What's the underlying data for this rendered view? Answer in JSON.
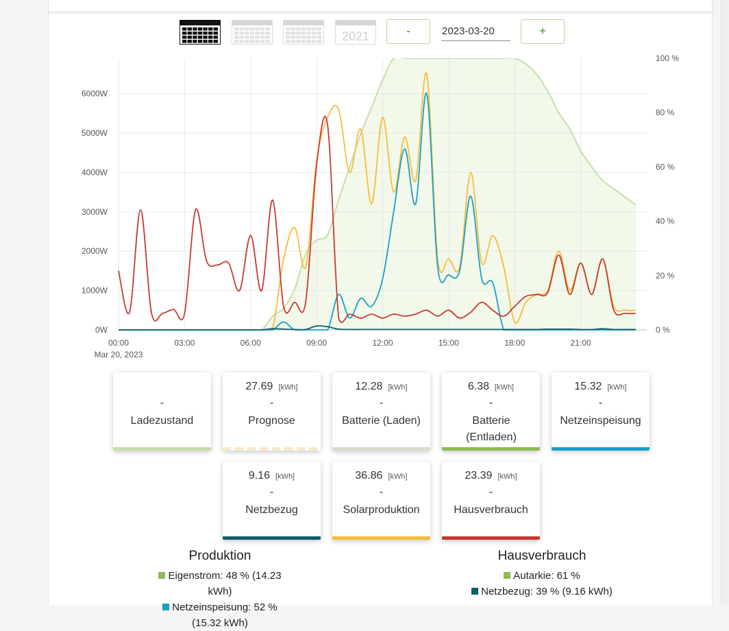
{
  "toolbar": {
    "period_year_label": "2021",
    "minus_label": "-",
    "plus_label": "+",
    "date_value": "2023-03-20"
  },
  "colors": {
    "soc": "#c5dfa8",
    "soc_fill": "#f2f8ea",
    "forecast": "#fbe6c9",
    "battery_charge": "#d7ddc9",
    "battery_discharge": "#8ebc55",
    "grid_feed": "#1a9fc7",
    "grid_draw": "#0f5e6b",
    "solar": "#f5bd3a",
    "house": "#c73a31"
  },
  "chart_data": {
    "type": "line",
    "x": [
      "00:00",
      "00:30",
      "01:00",
      "01:30",
      "02:00",
      "02:30",
      "03:00",
      "03:30",
      "04:00",
      "04:30",
      "05:00",
      "05:30",
      "06:00",
      "06:30",
      "07:00",
      "07:30",
      "08:00",
      "08:30",
      "09:00",
      "09:30",
      "10:00",
      "10:30",
      "11:00",
      "11:30",
      "12:00",
      "12:30",
      "13:00",
      "13:30",
      "14:00",
      "14:30",
      "15:00",
      "15:30",
      "16:00",
      "16:30",
      "17:00",
      "17:30",
      "18:00",
      "18:30",
      "19:00",
      "19:30",
      "20:00",
      "20:30",
      "21:00",
      "21:30",
      "22:00",
      "22:30",
      "23:00",
      "23:30"
    ],
    "x_tick_labels": [
      "00:00",
      "03:00",
      "06:00",
      "09:00",
      "12:00",
      "15:00",
      "18:00",
      "21:00"
    ],
    "x_sublabel": "Mar 20, 2023",
    "y_ticks_left": [
      "0W",
      "1000W",
      "2000W",
      "3000W",
      "4000W",
      "5000W",
      "6000W"
    ],
    "y_ticks_right": [
      "0 %",
      "20 %",
      "40 %",
      "60 %",
      "80 %",
      "100 %"
    ],
    "ylim": [
      0,
      6900
    ],
    "y2lim": [
      0,
      100
    ],
    "series": [
      {
        "key": "soc",
        "axis": "right",
        "values": [
          0,
          0,
          0,
          0,
          0,
          0,
          0,
          0,
          0,
          0,
          0,
          0,
          0,
          0,
          5,
          8,
          15,
          28,
          33,
          35,
          48,
          60,
          72,
          82,
          92,
          100,
          100,
          100,
          100,
          100,
          100,
          100,
          100,
          100,
          100,
          100,
          100,
          98,
          94,
          88,
          80,
          74,
          66,
          60,
          55,
          52,
          49,
          46
        ]
      },
      {
        "key": "solar",
        "axis": "left",
        "values": [
          0,
          0,
          0,
          0,
          0,
          0,
          0,
          0,
          0,
          0,
          0,
          0,
          0,
          0,
          50,
          1800,
          2600,
          1600,
          4300,
          5400,
          5600,
          4000,
          5100,
          3200,
          5400,
          3500,
          4900,
          3800,
          6500,
          1800,
          1800,
          1600,
          4000,
          1700,
          2400,
          1600,
          200,
          700,
          900,
          1000,
          2000,
          1000,
          1700,
          900,
          1800,
          600,
          500,
          500
        ]
      },
      {
        "key": "grid_feed",
        "axis": "left",
        "values": [
          0,
          0,
          0,
          0,
          0,
          0,
          0,
          0,
          0,
          0,
          0,
          0,
          0,
          0,
          0,
          200,
          0,
          0,
          0,
          0,
          900,
          300,
          800,
          600,
          1300,
          3000,
          4600,
          3200,
          6000,
          1600,
          1400,
          1500,
          3400,
          1300,
          1200,
          0,
          0,
          0,
          0,
          0,
          0,
          0,
          0,
          0,
          0,
          0,
          0,
          0
        ]
      },
      {
        "key": "grid_draw",
        "axis": "left",
        "values": [
          0,
          0,
          0,
          0,
          0,
          0,
          0,
          0,
          0,
          0,
          0,
          0,
          0,
          0,
          30,
          20,
          10,
          10,
          100,
          80,
          20,
          10,
          10,
          10,
          10,
          10,
          10,
          10,
          10,
          10,
          10,
          10,
          10,
          10,
          10,
          10,
          10,
          10,
          10,
          20,
          20,
          20,
          10,
          10,
          30,
          10,
          10,
          10
        ]
      },
      {
        "key": "house",
        "axis": "left",
        "values": [
          1500,
          450,
          3050,
          420,
          420,
          520,
          420,
          3050,
          1750,
          1650,
          1700,
          1000,
          2400,
          1000,
          3300,
          600,
          700,
          700,
          4200,
          5200,
          300,
          400,
          300,
          400,
          300,
          400,
          350,
          400,
          500,
          350,
          500,
          300,
          450,
          700,
          500,
          350,
          600,
          850,
          900,
          950,
          1900,
          900,
          1700,
          900,
          1800,
          500,
          420,
          420
        ]
      }
    ]
  },
  "tiles": [
    {
      "value": "",
      "unit": "",
      "dash": "-",
      "label": "Ladezustand",
      "bar_color": "#c5dfa8",
      "bar_style": "solid"
    },
    {
      "value": "27.69",
      "unit": "[kWh]",
      "dash": "-",
      "label": "Prognose",
      "bar_color": "#fbe6c9",
      "bar_style": "dashed"
    },
    {
      "value": "12.28",
      "unit": "[kWh]",
      "dash": "-",
      "label": "Batterie (Laden)",
      "bar_color": "#d7ddc9",
      "bar_style": "solid"
    },
    {
      "value": "6.38",
      "unit": "[kWh]",
      "dash": "-",
      "label": "Batterie (Entladen)",
      "bar_color": "#8ebc55",
      "bar_style": "solid"
    },
    {
      "value": "15.32",
      "unit": "[kWh]",
      "dash": "-",
      "label": "Netzeinspeisung",
      "bar_color": "#1a9fc7",
      "bar_style": "solid"
    },
    {
      "value": "9.16",
      "unit": "[kWh]",
      "dash": "-",
      "label": "Netzbezug",
      "bar_color": "#0f5e6b",
      "bar_style": "solid"
    },
    {
      "value": "36.86",
      "unit": "[kWh]",
      "dash": "-",
      "label": "Solarproduktion",
      "bar_color": "#f5bd3a",
      "bar_style": "solid"
    },
    {
      "value": "23.39",
      "unit": "[kWh]",
      "dash": "-",
      "label": "Hausverbrauch",
      "bar_color": "#c73a31",
      "bar_style": "solid"
    }
  ],
  "summary": {
    "production": {
      "title": "Produktion",
      "rows": [
        {
          "text": "Eigenstrom: 48 % (14.23 kWh)",
          "color": "#8ebc55"
        },
        {
          "text": "Netzeinspeisung: 52 % (15.32 kWh)",
          "color": "#1a9fc7"
        }
      ]
    },
    "consumption": {
      "title": "Hausverbrauch",
      "rows": [
        {
          "text": "Autarkie: 61 %",
          "color": "#8ebc55"
        },
        {
          "text": "Netzbezug: 39 % (9.16 kWh)",
          "color": "#0f5e6b"
        }
      ]
    }
  }
}
